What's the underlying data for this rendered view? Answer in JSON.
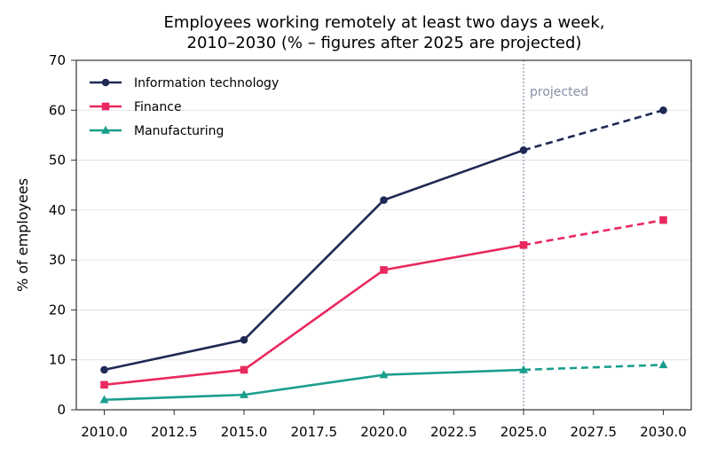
{
  "chart_data": {
    "type": "line",
    "title_lines": [
      "Employees working remotely at least two days a week,",
      "2010–2030 (% – figures after 2025 are projected)"
    ],
    "xlabel": "",
    "ylabel": "% of employees",
    "x": [
      2010,
      2015,
      2020,
      2025,
      2030
    ],
    "xlim": [
      2009,
      2031
    ],
    "ylim": [
      0,
      70
    ],
    "xticks": [
      2010.0,
      2012.5,
      2015.0,
      2017.5,
      2020.0,
      2022.5,
      2025.0,
      2027.5,
      2030.0
    ],
    "xtick_labels": [
      "2010.0",
      "2012.5",
      "2015.0",
      "2017.5",
      "2020.0",
      "2022.5",
      "2025.0",
      "2027.5",
      "2030.0"
    ],
    "yticks": [
      0,
      10,
      20,
      30,
      40,
      50,
      60,
      70
    ],
    "ytick_labels": [
      "0",
      "10",
      "20",
      "30",
      "40",
      "50",
      "60",
      "70"
    ],
    "grid": "horizontal",
    "legend_position": "top-left",
    "projection_start": 2025,
    "annotation": "projected",
    "annotation_color": "#8a8fa8",
    "series": [
      {
        "name": "Information technology",
        "values": [
          8,
          14,
          42,
          52,
          60
        ],
        "color": "#1f2a55",
        "marker": "circle"
      },
      {
        "name": "Finance",
        "values": [
          5,
          8,
          28,
          33,
          38
        ],
        "color": "#e8295f",
        "marker": "square"
      },
      {
        "name": "Manufacturing",
        "values": [
          2,
          3,
          7,
          8,
          9
        ],
        "color": "#1a9e8c",
        "marker": "triangle"
      }
    ]
  }
}
